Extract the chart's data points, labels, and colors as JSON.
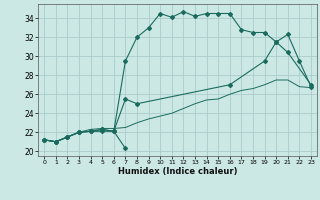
{
  "xlabel": "Humidex (Indice chaleur)",
  "background_color": "#cce8e4",
  "grid_color": "#aaccca",
  "line_color": "#1a6b5e",
  "xlim": [
    -0.5,
    23.5
  ],
  "ylim": [
    19.5,
    35.5
  ],
  "xticks": [
    0,
    1,
    2,
    3,
    4,
    5,
    6,
    7,
    8,
    9,
    10,
    11,
    12,
    13,
    14,
    15,
    16,
    17,
    18,
    19,
    20,
    21,
    22,
    23
  ],
  "yticks": [
    20,
    22,
    24,
    26,
    28,
    30,
    32,
    34
  ],
  "series1_x": [
    0,
    1,
    2,
    3,
    4,
    5,
    6,
    7
  ],
  "series1_y": [
    21.2,
    21.0,
    21.5,
    22.0,
    22.1,
    22.1,
    22.1,
    20.3
  ],
  "series2_x": [
    0,
    1,
    2,
    3,
    4,
    5,
    6,
    7,
    8,
    9,
    10,
    11,
    12,
    13,
    14,
    15,
    16,
    17,
    18,
    19,
    20,
    21,
    23
  ],
  "series2_y": [
    21.2,
    21.0,
    21.5,
    22.0,
    22.1,
    22.3,
    22.1,
    29.5,
    32.0,
    33.0,
    34.5,
    34.1,
    34.7,
    34.2,
    34.5,
    34.5,
    34.5,
    32.8,
    32.5,
    32.5,
    31.5,
    30.4,
    27.0
  ],
  "series3_x": [
    0,
    1,
    2,
    3,
    4,
    5,
    6,
    7,
    8,
    16,
    19,
    20,
    21,
    22,
    23
  ],
  "series3_y": [
    21.2,
    21.0,
    21.5,
    22.0,
    22.1,
    22.3,
    22.1,
    25.5,
    25.0,
    27.0,
    29.5,
    31.5,
    32.3,
    29.5,
    26.8
  ],
  "series4_x": [
    0,
    1,
    2,
    3,
    4,
    5,
    6,
    7,
    8,
    9,
    10,
    11,
    12,
    13,
    14,
    15,
    16,
    17,
    18,
    19,
    20,
    21,
    22,
    23
  ],
  "series4_y": [
    21.2,
    21.0,
    21.5,
    22.0,
    22.3,
    22.4,
    22.4,
    22.5,
    23.0,
    23.4,
    23.7,
    24.0,
    24.5,
    25.0,
    25.4,
    25.5,
    26.0,
    26.4,
    26.6,
    27.0,
    27.5,
    27.5,
    26.8,
    26.7
  ]
}
